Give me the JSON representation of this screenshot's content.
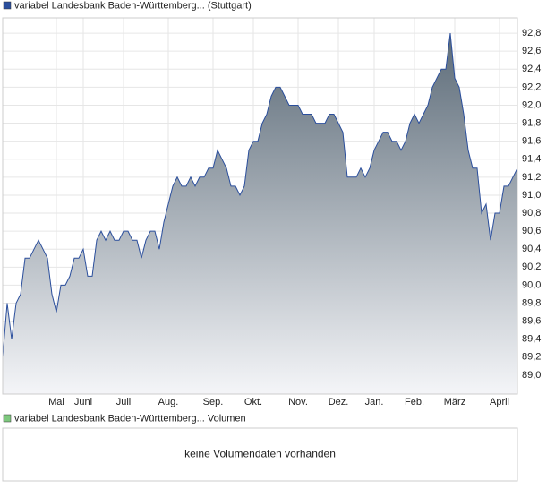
{
  "chart_data": {
    "type": "area",
    "series": [
      {
        "name": "variabel Landesbank Baden-Württemberg... (Stuttgart)",
        "color": "#2a4e9c",
        "values": [
          89.2,
          89.8,
          89.4,
          89.8,
          89.9,
          90.3,
          90.3,
          90.4,
          90.5,
          90.4,
          90.3,
          89.9,
          89.7,
          90.0,
          90.0,
          90.1,
          90.3,
          90.3,
          90.4,
          90.1,
          90.1,
          90.5,
          90.6,
          90.5,
          90.6,
          90.5,
          90.5,
          90.6,
          90.6,
          90.5,
          90.5,
          90.3,
          90.5,
          90.6,
          90.6,
          90.4,
          90.7,
          90.9,
          91.1,
          91.2,
          91.1,
          91.1,
          91.2,
          91.1,
          91.2,
          91.2,
          91.3,
          91.3,
          91.5,
          91.4,
          91.3,
          91.1,
          91.1,
          91.0,
          91.1,
          91.5,
          91.6,
          91.6,
          91.8,
          91.9,
          92.1,
          92.2,
          92.2,
          92.1,
          92.0,
          92.0,
          92.0,
          91.9,
          91.9,
          91.9,
          91.8,
          91.8,
          91.8,
          91.9,
          91.9,
          91.8,
          91.7,
          91.2,
          91.2,
          91.2,
          91.3,
          91.2,
          91.3,
          91.5,
          91.6,
          91.7,
          91.7,
          91.6,
          91.6,
          91.5,
          91.6,
          91.8,
          91.9,
          91.8,
          91.9,
          92.0,
          92.2,
          92.3,
          92.4,
          92.4,
          92.8,
          92.3,
          92.2,
          91.9,
          91.5,
          91.3,
          91.3,
          90.8,
          90.9,
          90.5,
          90.8,
          90.8,
          91.1,
          91.1,
          91.2,
          91.3
        ]
      }
    ],
    "x": [
      0,
      1,
      2,
      3,
      4,
      5,
      6,
      7,
      8,
      9,
      10,
      11,
      12,
      13,
      14,
      15,
      16,
      17,
      18,
      19,
      20,
      21,
      22,
      23,
      24,
      25,
      26,
      27,
      28,
      29,
      30,
      31,
      32,
      33,
      34,
      35,
      36,
      37,
      38,
      39,
      40,
      41,
      42,
      43,
      44,
      45,
      46,
      47,
      48,
      49,
      50,
      51,
      52,
      53,
      54,
      55,
      56,
      57,
      58,
      59,
      60,
      61,
      62,
      63,
      64,
      65,
      66,
      67,
      68,
      69,
      70,
      71,
      72,
      73,
      74,
      75,
      76,
      77,
      78,
      79,
      80,
      81,
      82,
      83,
      84,
      85,
      86,
      87,
      88,
      89,
      90,
      91,
      92,
      93,
      94,
      95,
      96,
      97,
      98,
      99,
      100,
      101,
      102,
      103,
      104,
      105,
      106,
      107,
      108,
      109,
      110,
      111,
      112,
      113,
      114,
      115
    ],
    "xlim": [
      0,
      115
    ],
    "xticks": [
      {
        "value": 12,
        "label": "Mai"
      },
      {
        "value": 18,
        "label": "Juni"
      },
      {
        "value": 27,
        "label": "Juli"
      },
      {
        "value": 37,
        "label": "Aug."
      },
      {
        "value": 47,
        "label": "Sep."
      },
      {
        "value": 56,
        "label": "Okt."
      },
      {
        "value": 66,
        "label": "Nov."
      },
      {
        "value": 75,
        "label": "Dez."
      },
      {
        "value": 83,
        "label": "Jan."
      },
      {
        "value": 92,
        "label": "Feb."
      },
      {
        "value": 101,
        "label": "März"
      },
      {
        "value": 111,
        "label": "April"
      }
    ],
    "ylim": [
      88.79,
      92.97
    ],
    "yticks": [
      {
        "value": 89.0,
        "label": "89,0"
      },
      {
        "value": 89.2,
        "label": "89,2"
      },
      {
        "value": 89.4,
        "label": "89,4"
      },
      {
        "value": 89.6,
        "label": "89,6"
      },
      {
        "value": 89.8,
        "label": "89,8"
      },
      {
        "value": 90.0,
        "label": "90,0"
      },
      {
        "value": 90.2,
        "label": "90,2"
      },
      {
        "value": 90.4,
        "label": "90,4"
      },
      {
        "value": 90.6,
        "label": "90,6"
      },
      {
        "value": 90.8,
        "label": "90,8"
      },
      {
        "value": 91.0,
        "label": "91,0"
      },
      {
        "value": 91.2,
        "label": "91,2"
      },
      {
        "value": 91.4,
        "label": "91,4"
      },
      {
        "value": 91.6,
        "label": "91,6"
      },
      {
        "value": 91.8,
        "label": "91,8"
      },
      {
        "value": 92.0,
        "label": "92,0"
      },
      {
        "value": 92.2,
        "label": "92,2"
      },
      {
        "value": 92.4,
        "label": "92,4"
      },
      {
        "value": 92.6,
        "label": "92,6"
      },
      {
        "value": 92.8,
        "label": "92,8"
      }
    ],
    "grid": true,
    "volume_panel": {
      "legend": "variabel Landesbank Baden-Württemberg... Volumen",
      "color": "#7ec87e",
      "message": "keine Volumendaten vorhanden"
    }
  }
}
